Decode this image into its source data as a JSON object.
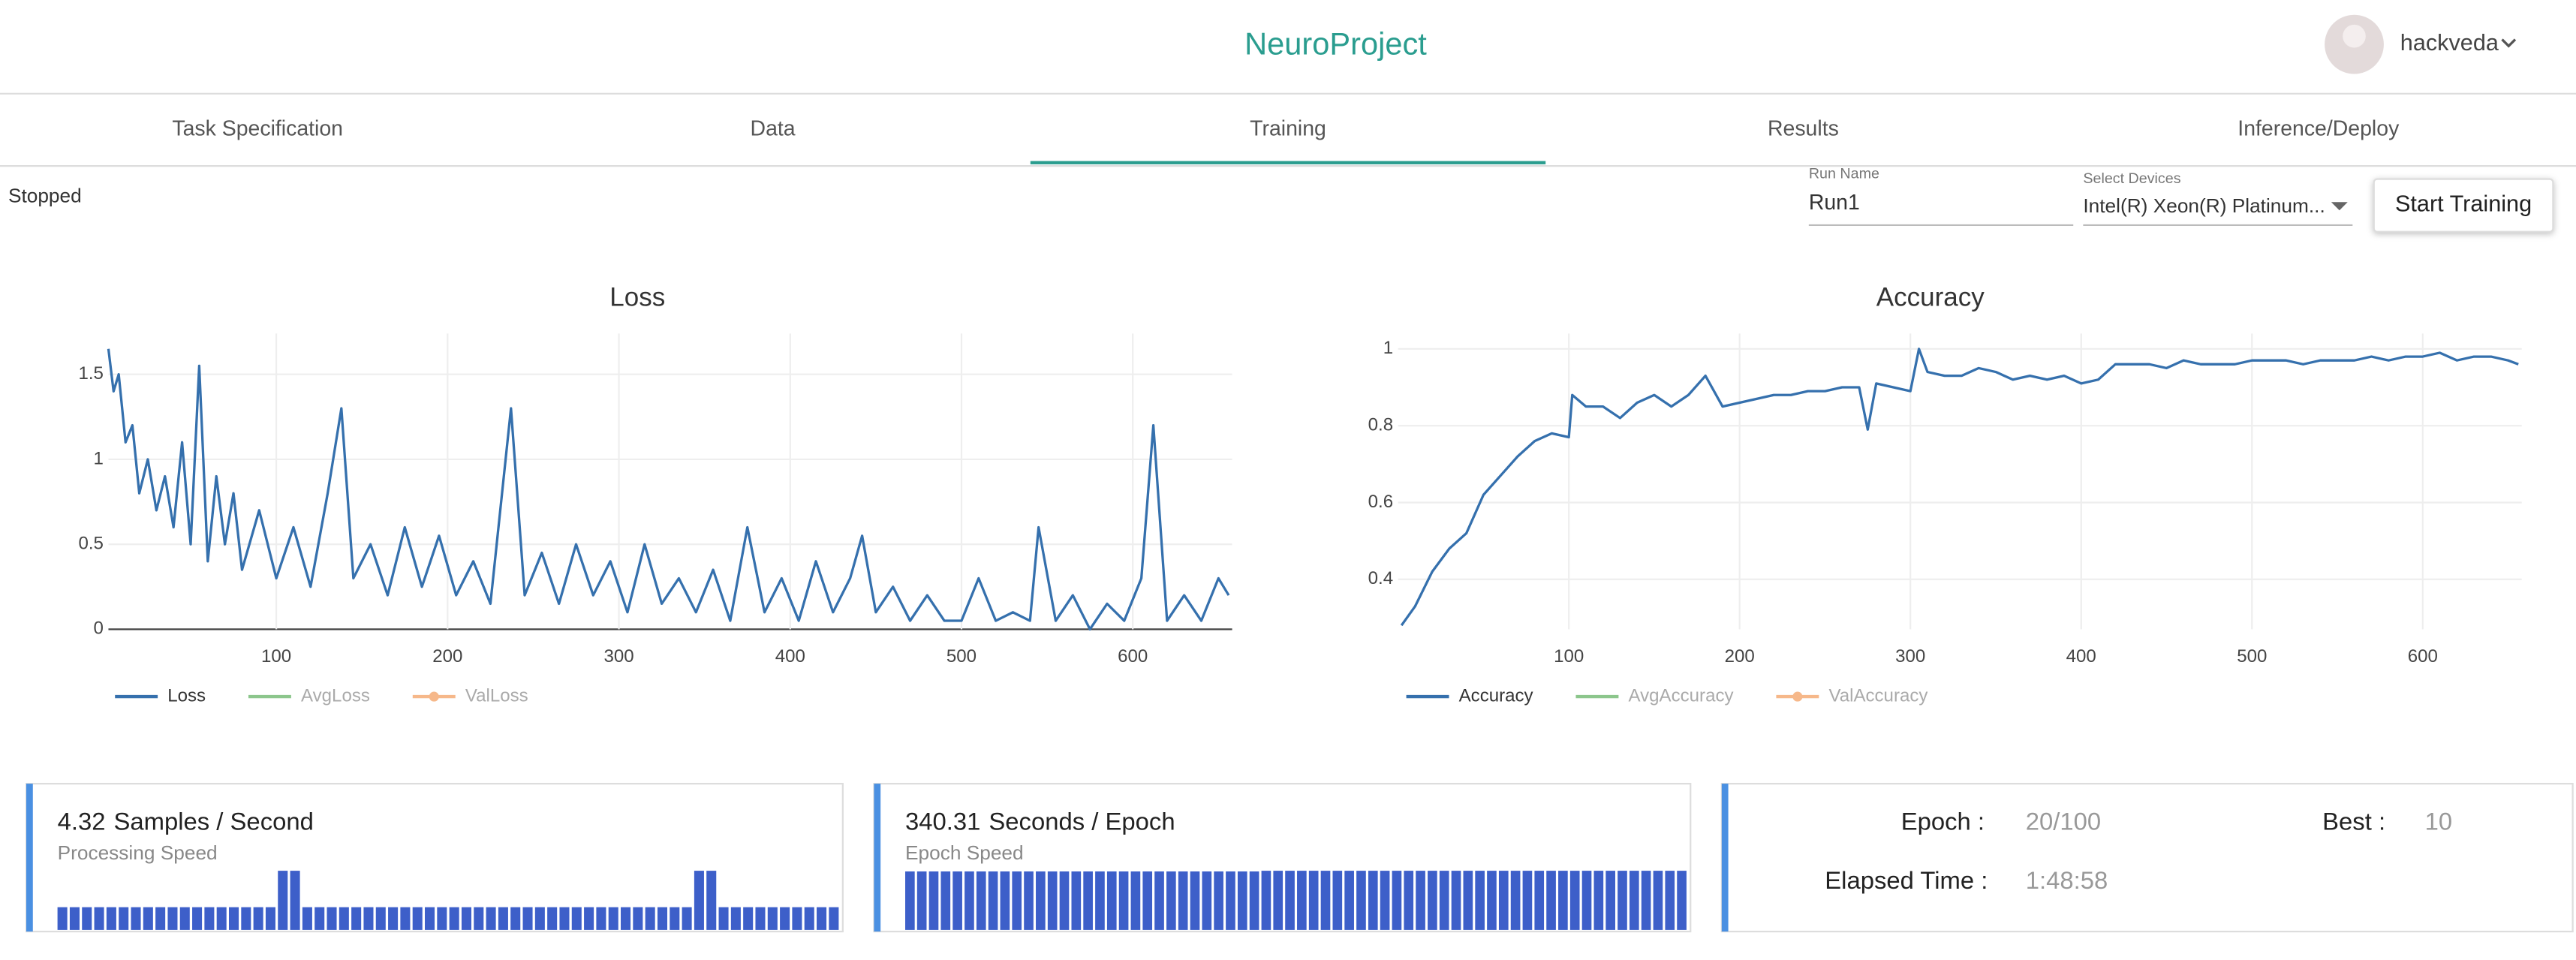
{
  "header": {
    "title": "NeuroProject",
    "user": "hackveda"
  },
  "tabs": [
    "Task Specification",
    "Data",
    "Training",
    "Results",
    "Inference/Deploy"
  ],
  "active_tab": 2,
  "status": "Stopped",
  "run_name": {
    "label": "Run Name",
    "value": "Run1"
  },
  "devices": {
    "label": "Select Devices",
    "value": "Intel(R) Xeon(R) Platinum..."
  },
  "button": "Start Training",
  "chart_data": [
    {
      "type": "line",
      "title": "Loss",
      "zeroline": true,
      "grid": true,
      "x": [
        2,
        5,
        8,
        12,
        16,
        20,
        25,
        30,
        35,
        40,
        45,
        50,
        55,
        60,
        65,
        70,
        75,
        80,
        90,
        100,
        110,
        120,
        130,
        138,
        145,
        155,
        165,
        175,
        185,
        195,
        205,
        215,
        225,
        237,
        245,
        255,
        265,
        275,
        285,
        295,
        305,
        315,
        325,
        335,
        345,
        355,
        365,
        375,
        385,
        395,
        405,
        415,
        425,
        435,
        442,
        450,
        460,
        470,
        480,
        490,
        500,
        510,
        520,
        530,
        540,
        545,
        555,
        565,
        575,
        585,
        595,
        605,
        612,
        620,
        630,
        640,
        650,
        656
      ],
      "series": [
        {
          "name": "Loss",
          "color": "#3570ad",
          "values": [
            1.65,
            1.4,
            1.5,
            1.1,
            1.2,
            0.8,
            1.0,
            0.7,
            0.9,
            0.6,
            1.1,
            0.5,
            1.55,
            0.4,
            0.9,
            0.5,
            0.8,
            0.35,
            0.7,
            0.3,
            0.6,
            0.25,
            0.8,
            1.3,
            0.3,
            0.5,
            0.2,
            0.6,
            0.25,
            0.55,
            0.2,
            0.4,
            0.15,
            1.3,
            0.2,
            0.45,
            0.15,
            0.5,
            0.2,
            0.4,
            0.1,
            0.5,
            0.15,
            0.3,
            0.1,
            0.35,
            0.05,
            0.6,
            0.1,
            0.3,
            0.05,
            0.4,
            0.1,
            0.3,
            0.55,
            0.1,
            0.25,
            0.05,
            0.2,
            0.05,
            0.05,
            0.3,
            0.05,
            0.1,
            0.05,
            0.6,
            0.05,
            0.2,
            0.0,
            0.15,
            0.05,
            0.3,
            1.2,
            0.05,
            0.2,
            0.05,
            0.3,
            0.2
          ]
        },
        {
          "name": "AvgLoss",
          "color": "#8cc68c"
        },
        {
          "name": "ValLoss",
          "color": "#f6b88a",
          "marker": true
        }
      ],
      "xlim": [
        2,
        658
      ],
      "xticks": [
        100,
        200,
        300,
        400,
        500,
        600
      ],
      "ylim": [
        0,
        1.74
      ],
      "yticks": [
        0,
        0.5,
        1,
        1.5
      ]
    },
    {
      "type": "line",
      "title": "Accuracy",
      "zeroline": false,
      "grid": true,
      "x": [
        2,
        10,
        20,
        30,
        40,
        50,
        60,
        70,
        80,
        90,
        100,
        102,
        110,
        120,
        130,
        140,
        150,
        160,
        170,
        180,
        190,
        200,
        210,
        220,
        230,
        240,
        250,
        260,
        270,
        275,
        280,
        290,
        300,
        305,
        310,
        320,
        330,
        340,
        350,
        360,
        370,
        380,
        390,
        400,
        410,
        420,
        430,
        440,
        450,
        460,
        470,
        480,
        490,
        500,
        510,
        520,
        530,
        540,
        550,
        560,
        570,
        580,
        590,
        600,
        610,
        620,
        630,
        640,
        650,
        656
      ],
      "series": [
        {
          "name": "Accuracy",
          "color": "#3570ad",
          "values": [
            0.28,
            0.33,
            0.42,
            0.48,
            0.52,
            0.62,
            0.67,
            0.72,
            0.76,
            0.78,
            0.77,
            0.88,
            0.85,
            0.85,
            0.82,
            0.86,
            0.88,
            0.85,
            0.88,
            0.93,
            0.85,
            0.86,
            0.87,
            0.88,
            0.88,
            0.89,
            0.89,
            0.9,
            0.9,
            0.79,
            0.91,
            0.9,
            0.89,
            1.0,
            0.94,
            0.93,
            0.93,
            0.95,
            0.94,
            0.92,
            0.93,
            0.92,
            0.93,
            0.91,
            0.92,
            0.96,
            0.96,
            0.96,
            0.95,
            0.97,
            0.96,
            0.96,
            0.96,
            0.97,
            0.97,
            0.97,
            0.96,
            0.97,
            0.97,
            0.97,
            0.98,
            0.97,
            0.98,
            0.98,
            0.99,
            0.97,
            0.98,
            0.98,
            0.97,
            0.96
          ]
        },
        {
          "name": "AvgAccuracy",
          "color": "#8cc68c"
        },
        {
          "name": "ValAccuracy",
          "color": "#f6b88a",
          "marker": true
        }
      ],
      "xlim": [
        0,
        658
      ],
      "xticks": [
        100,
        200,
        300,
        400,
        500,
        600
      ],
      "ylim": [
        0.27,
        1.04
      ],
      "yticks": [
        0.4,
        0.6,
        0.8,
        1
      ]
    },
    {
      "type": "bar",
      "color": "#3d5fc9",
      "values": [
        4.3,
        4.3,
        4.3,
        4.3,
        4.3,
        4.3,
        4.3,
        4.3,
        4.3,
        4.3,
        4.3,
        4.3,
        4.3,
        4.3,
        4.3,
        4.3,
        4.3,
        4.3,
        11.2,
        11.2,
        4.3,
        4.3,
        4.3,
        4.3,
        4.3,
        4.3,
        4.3,
        4.3,
        4.3,
        4.3,
        4.3,
        4.3,
        4.3,
        4.3,
        4.3,
        4.3,
        4.3,
        4.3,
        4.3,
        4.3,
        4.3,
        4.3,
        4.3,
        4.3,
        4.3,
        4.3,
        4.3,
        4.3,
        4.3,
        4.3,
        4.3,
        4.3,
        11.2,
        11.2,
        4.3,
        4.3,
        4.3,
        4.3,
        4.3,
        4.3,
        4.3,
        4.3,
        4.3,
        4.3
      ]
    },
    {
      "type": "bar",
      "color": "#3d5fc9",
      "values": [
        338,
        338,
        338,
        338,
        338,
        338,
        338,
        338,
        338,
        338,
        338,
        338,
        338,
        338,
        338,
        338,
        338,
        338,
        338,
        338,
        338,
        338,
        338,
        338,
        338,
        338,
        338,
        338,
        338,
        338,
        342,
        342,
        342,
        342,
        342,
        342,
        342,
        342,
        342,
        342,
        342,
        342,
        342,
        342,
        342,
        342,
        342,
        342,
        342,
        342,
        342,
        342,
        342,
        342,
        342,
        342,
        342,
        342,
        342,
        342,
        342,
        342,
        342,
        342,
        342,
        342
      ]
    }
  ],
  "cards": [
    {
      "value": 4.32,
      "unit": "Samples / Second",
      "caption": "Processing Speed"
    },
    {
      "value": 340.31,
      "unit": "Seconds / Epoch",
      "caption": "Epoch Speed"
    }
  ],
  "stats": {
    "epoch": {
      "label": "Epoch :",
      "value": "20/100"
    },
    "best": {
      "label": "Best :",
      "value": 10
    },
    "elapsed": {
      "label": "Elapsed Time :",
      "value": "1:48:58"
    }
  }
}
